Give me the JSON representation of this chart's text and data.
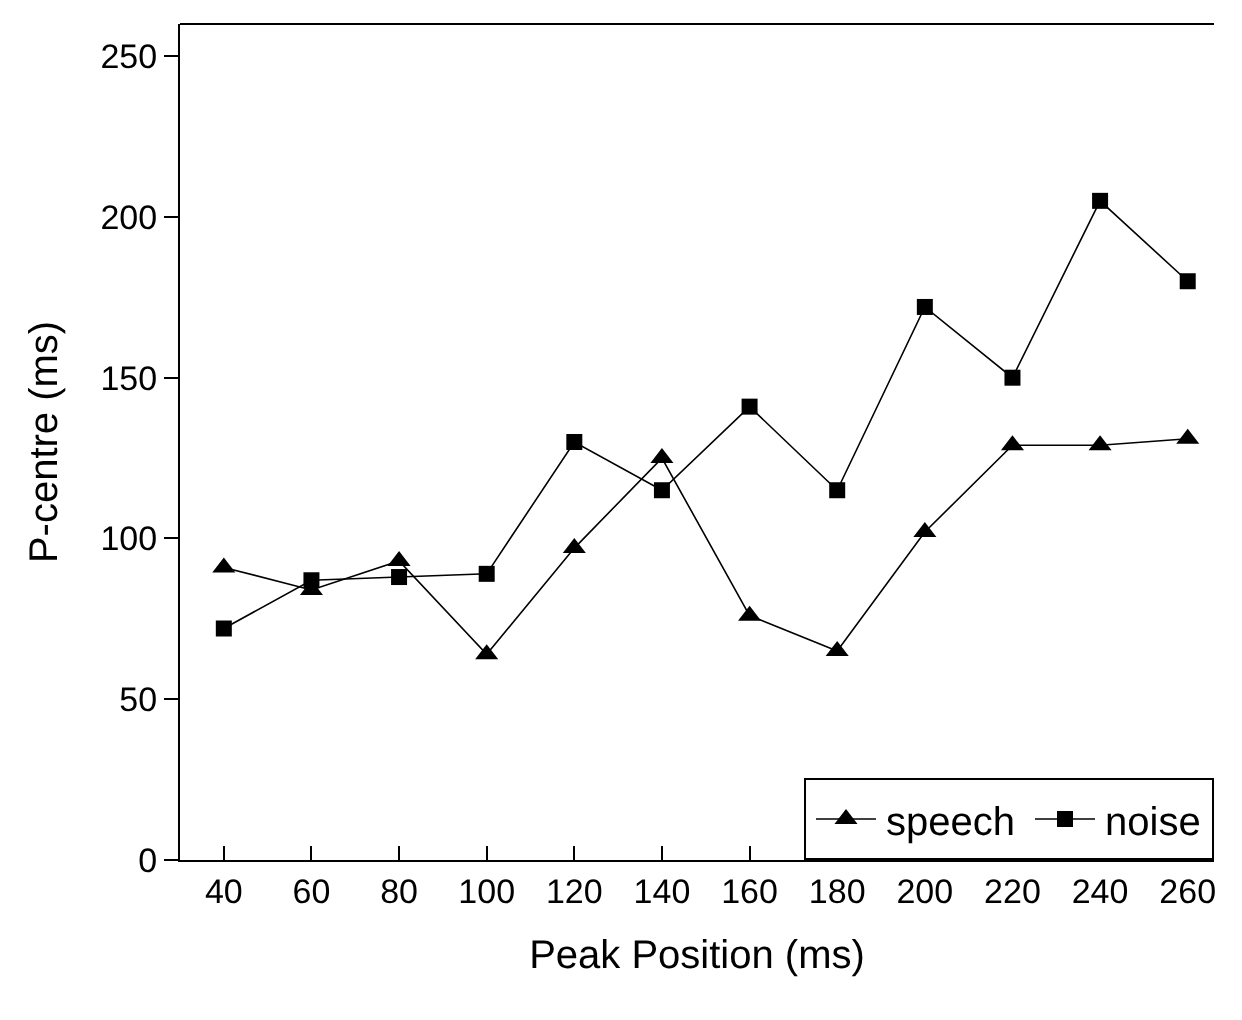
{
  "chart_data": {
    "type": "line",
    "xlabel": "Peak Position (ms)",
    "ylabel": "P-centre (ms)",
    "x": [
      40,
      60,
      80,
      100,
      120,
      140,
      160,
      180,
      200,
      220,
      240,
      260
    ],
    "xlim": [
      30,
      266
    ],
    "xticks": [
      40,
      60,
      80,
      100,
      120,
      140,
      160,
      180,
      200,
      220,
      240,
      260
    ],
    "ylim": [
      0,
      260
    ],
    "yticks": [
      0,
      50,
      100,
      150,
      200,
      250
    ],
    "legend": "bottom right",
    "line_style": "solid",
    "series": [
      {
        "name": "speech",
        "color": "#000000",
        "marker": "triangle",
        "values": [
          91,
          84,
          93,
          64,
          97,
          125,
          76,
          65,
          102,
          129,
          129,
          131
        ]
      },
      {
        "name": "noise",
        "color": "#000000",
        "marker": "square",
        "values": [
          72,
          87,
          88,
          89,
          130,
          115,
          141,
          115,
          172,
          150,
          205,
          180
        ]
      }
    ]
  }
}
